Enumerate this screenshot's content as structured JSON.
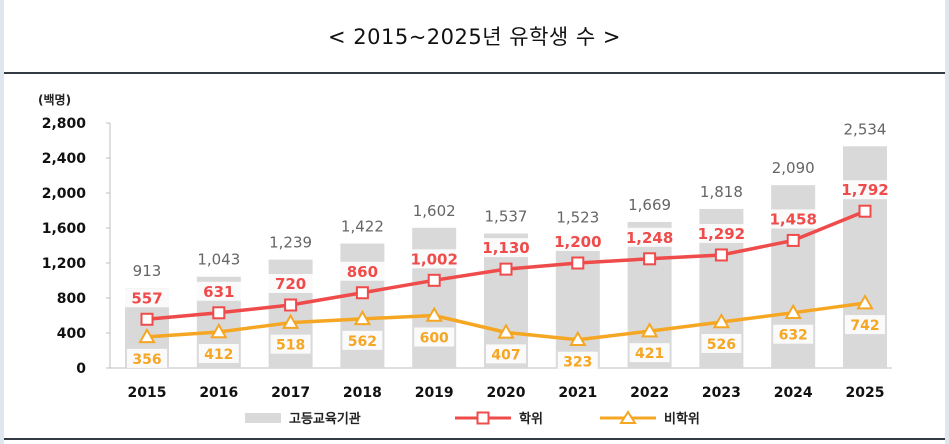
{
  "title": "< 2015~2025년 유학생 수 >",
  "chart_data": {
    "type": "bar",
    "unit_label": "(백명)",
    "ylim": [
      0,
      2800
    ],
    "yticks": [
      0,
      400,
      800,
      1200,
      1600,
      2000,
      2400,
      2800
    ],
    "ytick_labels": [
      "0",
      "400",
      "800",
      "1,200",
      "1,600",
      "2,000",
      "2,400",
      "2,800"
    ],
    "categories": [
      "2015",
      "2016",
      "2017",
      "2018",
      "2019",
      "2020",
      "2021",
      "2022",
      "2023",
      "2024",
      "2025"
    ],
    "grid": false,
    "legend_position": "bottom",
    "series": [
      {
        "name": "고등교육기관",
        "type": "bar",
        "color": "#d9d9d9",
        "values": [
          913,
          1043,
          1239,
          1422,
          1602,
          1537,
          1523,
          1669,
          1818,
          2090,
          2534
        ],
        "labels": [
          "913",
          "1,043",
          "1,239",
          "1,422",
          "1,602",
          "1,537",
          "1,523",
          "1,669",
          "1,818",
          "2,090",
          "2,534"
        ]
      },
      {
        "name": "학위",
        "type": "line",
        "marker": "square",
        "color": "#ef4b4b",
        "values": [
          557,
          631,
          720,
          860,
          1002,
          1130,
          1200,
          1248,
          1292,
          1458,
          1792
        ],
        "labels": [
          "557",
          "631",
          "720",
          "860",
          "1,002",
          "1,130",
          "1,200",
          "1,248",
          "1,292",
          "1,458",
          "1,792"
        ]
      },
      {
        "name": "비학위",
        "type": "line",
        "marker": "triangle",
        "color": "#f5a623",
        "values": [
          356,
          412,
          518,
          562,
          600,
          407,
          323,
          421,
          526,
          632,
          742
        ],
        "labels": [
          "356",
          "412",
          "518",
          "562",
          "600",
          "407",
          "323",
          "421",
          "526",
          "632",
          "742"
        ]
      }
    ]
  }
}
